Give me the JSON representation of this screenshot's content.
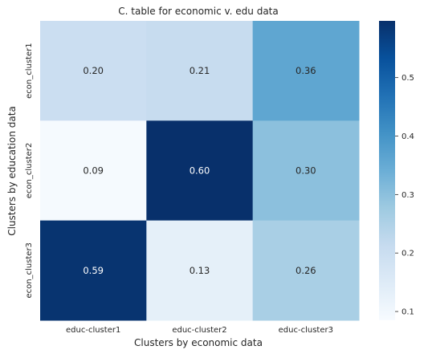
{
  "chart_data": {
    "type": "heatmap",
    "title": "C. table for economic v. edu data",
    "xlabel": "Clusters by economic data",
    "ylabel": "Clusters by education data",
    "x_categories": [
      "educ-cluster1",
      "educ-cluster2",
      "educ-cluster3"
    ],
    "y_categories": [
      "econ_cluster1",
      "econ_cluster2",
      "econ_cluster3"
    ],
    "values": [
      [
        0.2,
        0.21,
        0.36
      ],
      [
        0.09,
        0.6,
        0.3
      ],
      [
        0.59,
        0.13,
        0.26
      ]
    ],
    "annotations": [
      [
        "0.20",
        "0.21",
        "0.36"
      ],
      [
        "0.09",
        "0.60",
        "0.30"
      ],
      [
        "0.59",
        "0.13",
        "0.26"
      ]
    ],
    "colormap": "Blues",
    "colorbar": {
      "range": [
        0.085,
        0.597
      ],
      "ticks": [
        0.1,
        0.2,
        0.3,
        0.4,
        0.5
      ],
      "tick_labels": [
        "0.1",
        "0.2",
        "0.3",
        "0.4",
        "0.5"
      ],
      "position": "right"
    },
    "text_colors": {
      "dark": "#262626",
      "light": "#ffffff"
    }
  }
}
